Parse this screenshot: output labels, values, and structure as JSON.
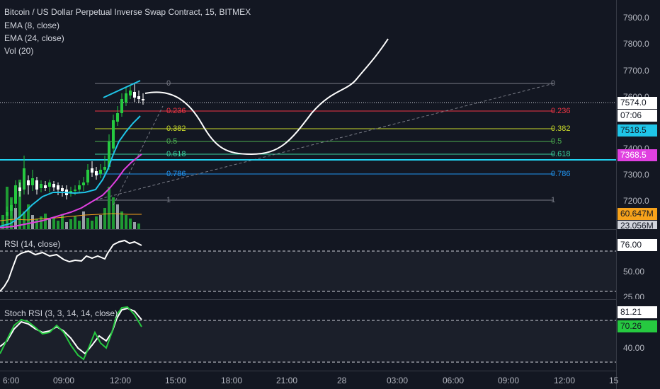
{
  "legend": {
    "title": "Bitcoin / US Dollar Perpetual Inverse Swap Contract, 15, BITMEX",
    "ema8": "EMA (8, close)",
    "ema24": "EMA (24, close)",
    "vol": "Vol (20)",
    "rsi": "RSI (14, close)",
    "stoch": "Stoch RSI (3, 3, 14, 14, close)"
  },
  "price_axis": [
    "7900.0",
    "7800.0",
    "7700.0",
    "7600.0",
    "7400.0",
    "7300.0",
    "7200.0"
  ],
  "price_tags": {
    "last": "7574.0",
    "countdown": "07:06",
    "ema8": "7518.5",
    "support": "7368.5",
    "vol_ma": "60.647M",
    "vol_last": "23.056M"
  },
  "rsi_axis": {
    "upper": "76.00",
    "mid": "50.00",
    "lower": "25.00"
  },
  "stoch_axis": {
    "k": "81.21",
    "d": "70.26",
    "mid": "40.00"
  },
  "fib": {
    "left": [
      "0",
      "0.236",
      "0.382",
      "0.5",
      "0.618",
      "0.786",
      "1"
    ],
    "right": [
      "0",
      "0.236",
      "0.382",
      "0.5",
      "0.618",
      "0.786",
      "1"
    ]
  },
  "time_axis": [
    "6:00",
    "09:00",
    "12:00",
    "15:00",
    "18:00",
    "21:00",
    "28",
    "03:00",
    "06:00",
    "09:00",
    "12:00",
    "15"
  ],
  "colors": {
    "background": "#131722",
    "up": "#26c940",
    "down": "#ffffff",
    "ema8": "#1fc5e8",
    "ema24": "#e040e0",
    "support_line": "#22d3f2",
    "fib_0": "#787b86",
    "fib_236": "#f23645",
    "fib_382": "#c8d82a",
    "fib_5": "#4caf50",
    "fib_618": "#39d3a0",
    "fib_786": "#2196f3"
  }
}
